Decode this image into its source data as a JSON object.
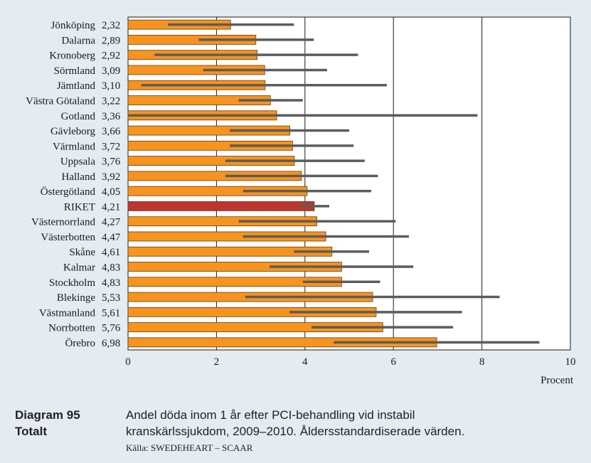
{
  "chart_data": {
    "type": "bar",
    "orientation": "horizontal",
    "xlabel": "Procent",
    "xlim": [
      0,
      10
    ],
    "xticks": [
      0,
      2,
      4,
      6,
      8,
      10
    ],
    "categories": [
      "Jönköping",
      "Dalarna",
      "Kronoberg",
      "Sörmland",
      "Jämtland",
      "Västra Götaland",
      "Gotland",
      "Gävleborg",
      "Värmland",
      "Uppsala",
      "Halland",
      "Östergötland",
      "RIKET",
      "Västernorrland",
      "Västerbotten",
      "Skåne",
      "Kalmar",
      "Stockholm",
      "Blekinge",
      "Västmanland",
      "Norrbotten",
      "Örebro"
    ],
    "value_labels": [
      "2,32",
      "2,89",
      "2,92",
      "3,09",
      "3,10",
      "3,22",
      "3,36",
      "3,66",
      "3,72",
      "3,76",
      "3,92",
      "4,05",
      "4,21",
      "4,27",
      "4,47",
      "4,61",
      "4,83",
      "4,83",
      "5,53",
      "5,61",
      "5,76",
      "6,98"
    ],
    "values": [
      2.32,
      2.89,
      2.92,
      3.09,
      3.1,
      3.22,
      3.36,
      3.66,
      3.72,
      3.76,
      3.92,
      4.05,
      4.21,
      4.27,
      4.47,
      4.61,
      4.83,
      4.83,
      5.53,
      5.61,
      5.76,
      6.98
    ],
    "ci_low": [
      0.9,
      1.6,
      0.6,
      1.7,
      0.3,
      2.5,
      0.0,
      2.3,
      2.3,
      2.2,
      2.2,
      2.6,
      3.9,
      2.5,
      2.6,
      3.75,
      3.2,
      3.95,
      2.65,
      3.65,
      4.15,
      4.65
    ],
    "ci_high": [
      3.75,
      4.2,
      5.2,
      4.5,
      5.85,
      3.95,
      7.9,
      5.0,
      5.1,
      5.35,
      5.65,
      5.5,
      4.55,
      6.05,
      6.35,
      5.45,
      6.45,
      5.7,
      8.4,
      7.55,
      7.35,
      9.3
    ],
    "highlight": "RIKET",
    "colors": {
      "bar": "#f7941d",
      "highlight_bar": "#bc3530",
      "bar_outline": "#6b3d12",
      "error_bar": "#5c5c5c",
      "plot_bg": "#ffffff",
      "grid": "#1a1a1a"
    },
    "grid": true
  },
  "caption": {
    "label_line1": "Diagram 95",
    "label_line2": "Totalt",
    "text_line1": "Andel döda inom 1 år efter PCI-behandling vid instabil",
    "text_line2": "kranskärlssjukdom, 2009–2010. Åldersstandardiserade värden.",
    "source": "Källa: SWEDEHEART – SCAAR"
  }
}
